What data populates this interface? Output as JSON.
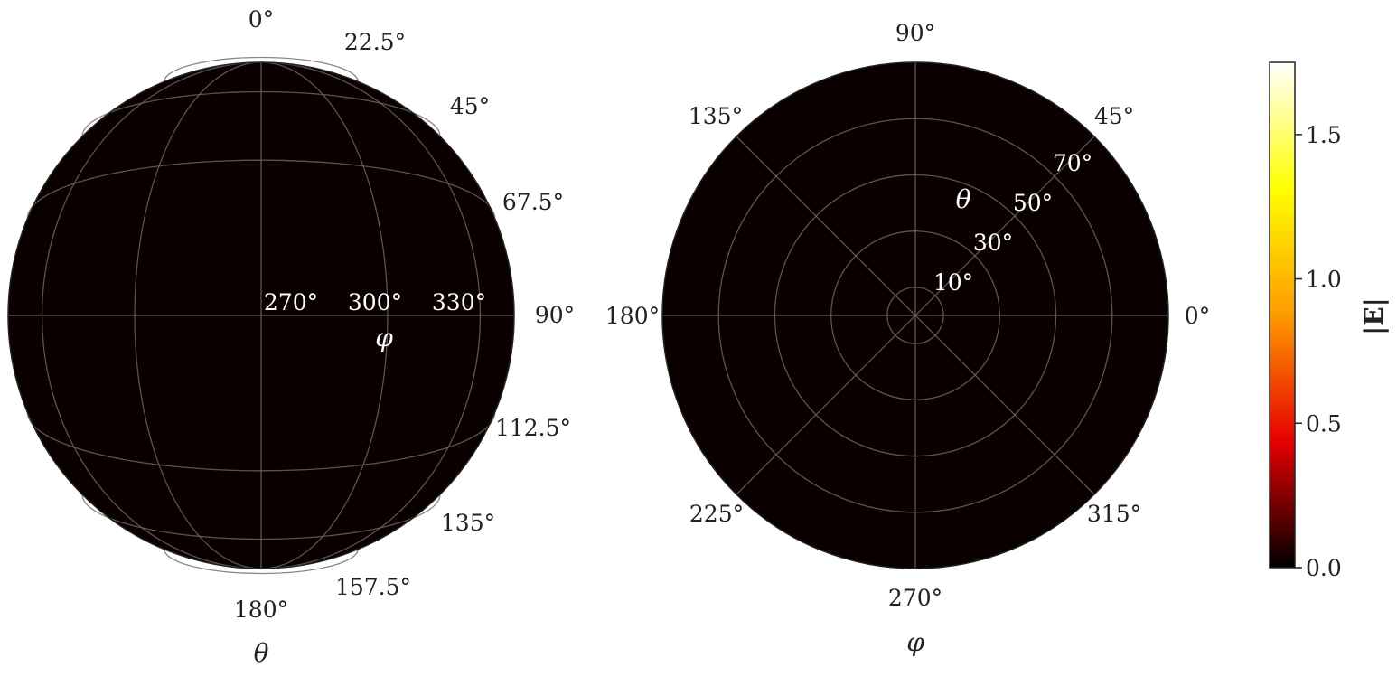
{
  "chart_data": [
    {
      "type": "heatmap",
      "projection": "orthographic-sphere",
      "background_color": "#0a0000",
      "edge_ticks": {
        "labels": [
          "0°",
          "22.5°",
          "45°",
          "67.5°",
          "90°",
          "112.5°",
          "135°",
          "157.5°",
          "180°"
        ]
      },
      "inner_ticks": {
        "labels": [
          "270°",
          "300°",
          "330°"
        ]
      },
      "xlabel": "θ",
      "inner_label": "φ",
      "field_values": "uniform ~0.0 (black)"
    },
    {
      "type": "heatmap",
      "projection": "polar",
      "background_color": "#0a0000",
      "angular_ticks": {
        "labels": [
          "0°",
          "45°",
          "90°",
          "135°",
          "180°",
          "225°",
          "270°",
          "315°"
        ],
        "values": [
          0,
          45,
          90,
          135,
          180,
          225,
          270,
          315
        ]
      },
      "radial_ticks": {
        "labels": [
          "10°",
          "30°",
          "50°",
          "70°"
        ],
        "values": [
          10,
          30,
          50,
          70
        ],
        "rmax": 90
      },
      "radial_label": "θ",
      "xlabel": "φ",
      "field_values": "uniform ~0.0 (black)"
    }
  ],
  "colorbar": {
    "label": "|E|",
    "colormap": "hot",
    "range": [
      0.0,
      1.75
    ],
    "tick_values": [
      0.0,
      0.5,
      1.0,
      1.5
    ],
    "tick_labels": [
      "0.0",
      "0.5",
      "1.0",
      "1.5"
    ],
    "colors": [
      "#000000",
      "#e60000",
      "#ff9a00",
      "#ffff00",
      "#ffffff"
    ]
  }
}
